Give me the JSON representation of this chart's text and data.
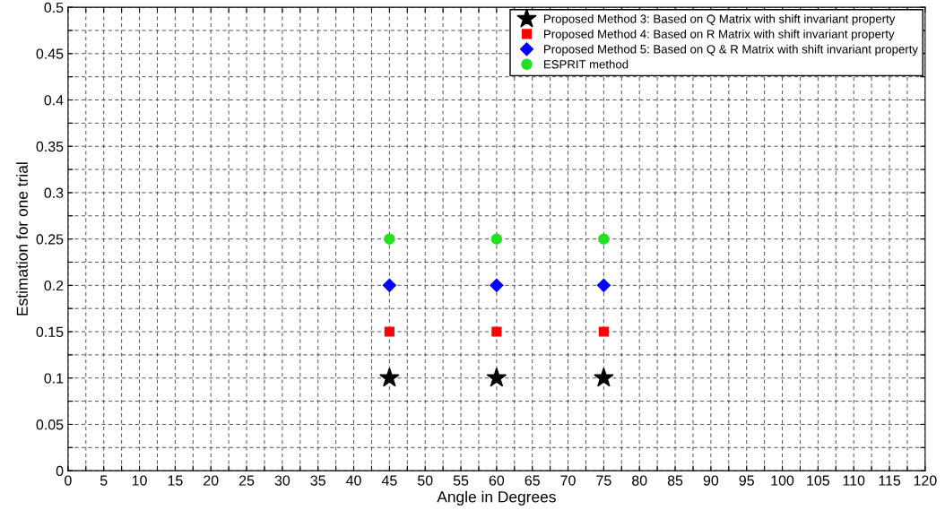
{
  "chart_data": {
    "type": "scatter",
    "xlabel": "Angle in Degrees",
    "ylabel": "Estimation for one trial",
    "x": [
      45,
      60,
      75
    ],
    "series": [
      {
        "name": "Proposed Method 3: Based on Q Matrix with shift invariant property",
        "color": "#000000",
        "marker": "star",
        "values": [
          0.1,
          0.1,
          0.1
        ]
      },
      {
        "name": "Proposed Method 4: Based on R Matrix with shift invariant property",
        "color": "#ff0000",
        "marker": "square",
        "values": [
          0.15,
          0.15,
          0.15
        ]
      },
      {
        "name": "Proposed Method 5: Based on Q & R Matrix with shift invariant property",
        "color": "#0000ff",
        "marker": "diamond",
        "values": [
          0.2,
          0.2,
          0.2
        ]
      },
      {
        "name": "ESPRIT method",
        "color": "#22e022",
        "marker": "circle",
        "values": [
          0.25,
          0.25,
          0.25
        ]
      }
    ],
    "xlim": [
      0,
      120
    ],
    "ylim": [
      0,
      0.5
    ],
    "xticks": [
      0,
      {
        "value": 2.5,
        "label": null
      },
      5,
      {
        "value": 7.5,
        "label": null
      },
      10,
      {
        "value": 12.5,
        "label": null
      },
      15,
      {
        "value": 17.5,
        "label": null
      },
      20,
      {
        "value": 22.5,
        "label": null
      },
      25,
      {
        "value": 27.5,
        "label": null
      },
      30,
      {
        "value": 32.5,
        "label": null
      },
      35,
      {
        "value": 37.5,
        "label": null
      },
      40,
      {
        "value": 42.5,
        "label": null
      },
      45,
      {
        "value": 47.5,
        "label": null
      },
      50,
      {
        "value": 52.5,
        "label": null
      },
      55,
      {
        "value": 57.5,
        "label": null
      },
      60,
      {
        "value": 62.5,
        "label": null
      },
      65,
      {
        "value": 67.5,
        "label": null
      },
      70,
      {
        "value": 72.5,
        "label": null
      },
      75,
      {
        "value": 77.5,
        "label": null
      },
      80,
      {
        "value": 82.5,
        "label": null
      },
      85,
      {
        "value": 87.5,
        "label": null
      },
      90,
      {
        "value": 92.5,
        "label": null
      },
      95,
      {
        "value": 97.5,
        "label": null
      },
      100,
      {
        "value": 102.5,
        "label": null
      },
      105,
      {
        "value": 107.5,
        "label": null
      },
      110,
      {
        "value": 112.5,
        "label": null
      },
      115,
      {
        "value": 117.5,
        "label": null
      },
      120
    ],
    "yticks": [
      0,
      {
        "value": 0.025,
        "label": null
      },
      0.05,
      {
        "value": 0.075,
        "label": null
      },
      0.1,
      {
        "value": 0.125,
        "label": null
      },
      0.15,
      {
        "value": 0.175,
        "label": null
      },
      0.2,
      {
        "value": 0.225,
        "label": null
      },
      0.25,
      {
        "value": 0.275,
        "label": null
      },
      0.3,
      {
        "value": 0.325,
        "label": null
      },
      0.35,
      {
        "value": 0.375,
        "label": null
      },
      0.4,
      {
        "value": 0.425,
        "label": null
      },
      0.45,
      {
        "value": 0.475,
        "label": null
      },
      0.5
    ],
    "grid": true,
    "legend": "top right",
    "line_style": "dashed"
  }
}
